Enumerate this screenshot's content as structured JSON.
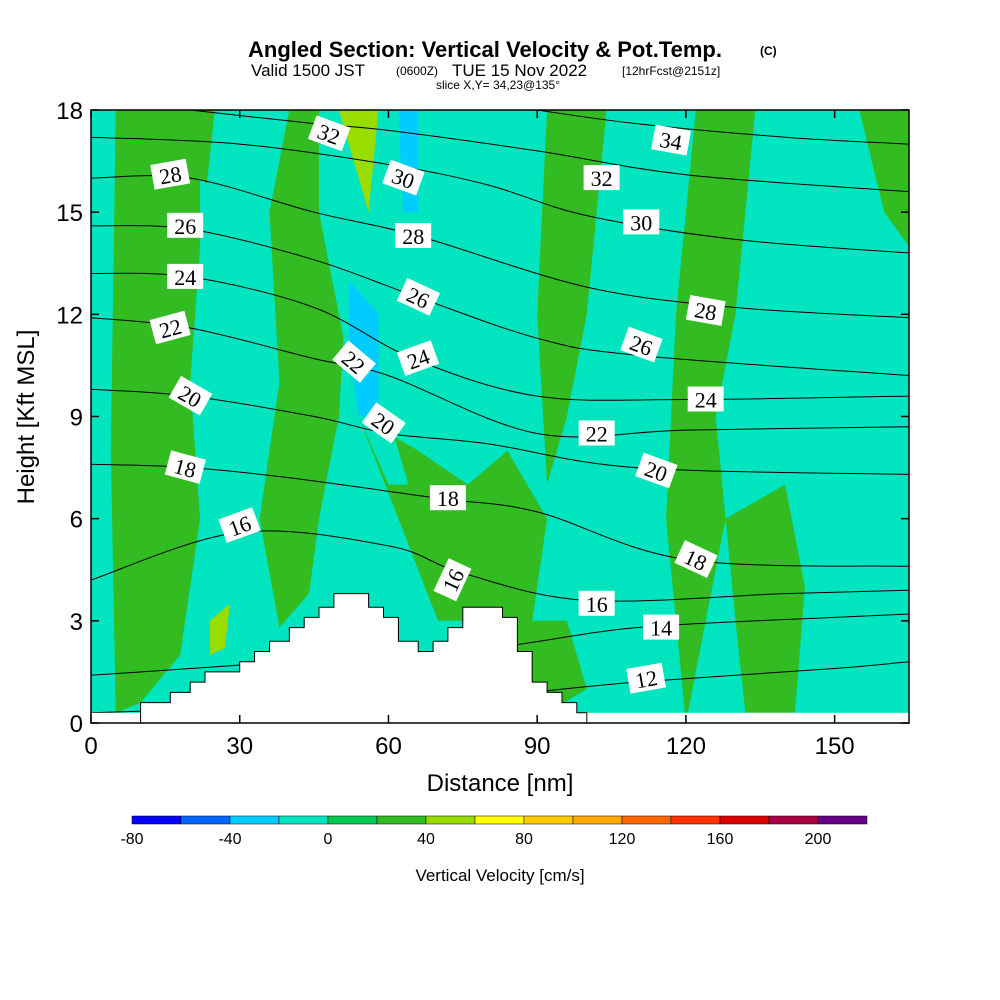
{
  "colors": {
    "bg_field": "#00e5c0",
    "stops": [
      "#0000ff",
      "#0066ff",
      "#00ccff",
      "#00e5c0",
      "#00c853",
      "#33bb22",
      "#99dd00",
      "#ffff00",
      "#ffcc00",
      "#ffaa00",
      "#ff6600",
      "#ff3300",
      "#dd0000",
      "#aa0044",
      "#660088"
    ]
  },
  "chart_data": {
    "type": "heatmap",
    "title": "Angled Section: Vertical Velocity & Pot.Temp.",
    "title_mark": "(C)",
    "subtitle_parts": [
      "Valid 1500 JST",
      "(0600Z)",
      "TUE 15 Nov 2022",
      "[12hrFcst@2151z]"
    ],
    "slice_text": "slice X,Y= 34,23@135°",
    "xlabel": "Distance [nm]",
    "ylabel": "Height [Kft MSL]",
    "xlim": [
      0,
      165
    ],
    "ylim": [
      0,
      18
    ],
    "xticks": [
      0,
      30,
      60,
      90,
      120,
      150
    ],
    "yticks": [
      0,
      3,
      6,
      9,
      12,
      15,
      18
    ],
    "colorbar": {
      "label": "Vertical Velocity [cm/s]",
      "min": -80,
      "max": 220,
      "step": 20,
      "tick_labels": [
        -80,
        -40,
        0,
        40,
        80,
        120,
        160,
        200
      ]
    },
    "terrain": [
      [
        10,
        0.3
      ],
      [
        10,
        0.6
      ],
      [
        16,
        0.6
      ],
      [
        16,
        0.9
      ],
      [
        20,
        0.9
      ],
      [
        20,
        1.2
      ],
      [
        23,
        1.2
      ],
      [
        23,
        1.5
      ],
      [
        26,
        1.5
      ],
      [
        26,
        1.5
      ],
      [
        30,
        1.5
      ],
      [
        30,
        1.8
      ],
      [
        33,
        1.8
      ],
      [
        33,
        2.1
      ],
      [
        36,
        2.1
      ],
      [
        36,
        2.4
      ],
      [
        40,
        2.4
      ],
      [
        40,
        2.8
      ],
      [
        43,
        2.8
      ],
      [
        43,
        3.1
      ],
      [
        46,
        3.1
      ],
      [
        46,
        3.4
      ],
      [
        49,
        3.4
      ],
      [
        49,
        3.8
      ],
      [
        56,
        3.8
      ],
      [
        56,
        3.4
      ],
      [
        59,
        3.4
      ],
      [
        59,
        3.1
      ],
      [
        62,
        3.1
      ],
      [
        62,
        2.4
      ],
      [
        66,
        2.4
      ],
      [
        66,
        2.1
      ],
      [
        69,
        2.1
      ],
      [
        69,
        2.4
      ],
      [
        72,
        2.4
      ],
      [
        72,
        2.8
      ],
      [
        75,
        2.8
      ],
      [
        75,
        3.4
      ],
      [
        78,
        3.4
      ],
      [
        78,
        3.4
      ],
      [
        83,
        3.4
      ],
      [
        83,
        3.1
      ],
      [
        86,
        3.1
      ],
      [
        86,
        2.1
      ],
      [
        89,
        2.1
      ],
      [
        89,
        1.2
      ],
      [
        92,
        1.2
      ],
      [
        92,
        0.9
      ],
      [
        95,
        0.9
      ],
      [
        95,
        0.6
      ],
      [
        98,
        0.6
      ],
      [
        98,
        0.3
      ],
      [
        100,
        0.3
      ],
      [
        100,
        0.0
      ]
    ],
    "velocity_regions": [
      {
        "value": 20,
        "points": [
          [
            5,
            18
          ],
          [
            25,
            18
          ],
          [
            22,
            14
          ],
          [
            20,
            10
          ],
          [
            22,
            6
          ],
          [
            18,
            2
          ],
          [
            10,
            0.6
          ],
          [
            5,
            0.3
          ],
          [
            4,
            8
          ]
        ]
      },
      {
        "value": 20,
        "points": [
          [
            40,
            18
          ],
          [
            48,
            18
          ],
          [
            52,
            14
          ],
          [
            50,
            9
          ],
          [
            46,
            6
          ],
          [
            44,
            3.8
          ],
          [
            38,
            2.8
          ],
          [
            34,
            6
          ],
          [
            38,
            10
          ],
          [
            36,
            15
          ]
        ]
      },
      {
        "value": 20,
        "points": [
          [
            54,
            9
          ],
          [
            62,
            6
          ],
          [
            70,
            3
          ],
          [
            80,
            3
          ],
          [
            88,
            2
          ],
          [
            92,
            6
          ],
          [
            84,
            8
          ],
          [
            76,
            7
          ],
          [
            66,
            8
          ]
        ]
      },
      {
        "value": 20,
        "points": [
          [
            92,
            18
          ],
          [
            104,
            18
          ],
          [
            100,
            12
          ],
          [
            96,
            9
          ],
          [
            92,
            7
          ],
          [
            90,
            12
          ]
        ]
      },
      {
        "value": 20,
        "points": [
          [
            122,
            18
          ],
          [
            134,
            18
          ],
          [
            130,
            12
          ],
          [
            126,
            9
          ],
          [
            128,
            6
          ],
          [
            124,
            3
          ],
          [
            120,
            0
          ],
          [
            116,
            6
          ],
          [
            118,
            12
          ]
        ]
      },
      {
        "value": 20,
        "points": [
          [
            128,
            6
          ],
          [
            140,
            7
          ],
          [
            144,
            4
          ],
          [
            142,
            0.3
          ],
          [
            132,
            0.3
          ],
          [
            130,
            3
          ]
        ]
      },
      {
        "value": 20,
        "points": [
          [
            84,
            3
          ],
          [
            96,
            3
          ],
          [
            100,
            1
          ],
          [
            92,
            0.3
          ],
          [
            84,
            0.3
          ]
        ]
      },
      {
        "value": 20,
        "points": [
          [
            155,
            18
          ],
          [
            165,
            18
          ],
          [
            165,
            14
          ],
          [
            160,
            15
          ]
        ]
      },
      {
        "value": 40,
        "points": [
          [
            50,
            18
          ],
          [
            58,
            18
          ],
          [
            56,
            15
          ],
          [
            54,
            16
          ]
        ]
      },
      {
        "value": 40,
        "points": [
          [
            24,
            3
          ],
          [
            28,
            3.5
          ],
          [
            27,
            2.2
          ],
          [
            24,
            2
          ]
        ]
      },
      {
        "value": -20,
        "points": [
          [
            22,
            16
          ],
          [
            30,
            15
          ],
          [
            30,
            10
          ],
          [
            26,
            8
          ],
          [
            22,
            10
          ]
        ]
      },
      {
        "value": -20,
        "points": [
          [
            46,
            18
          ],
          [
            50,
            18
          ],
          [
            54,
            13
          ],
          [
            60,
            9
          ],
          [
            64,
            7
          ],
          [
            60,
            7
          ],
          [
            54,
            9
          ],
          [
            50,
            12
          ],
          [
            46,
            15
          ]
        ]
      },
      {
        "value": -20,
        "points": [
          [
            62,
            18
          ],
          [
            72,
            18
          ],
          [
            70,
            14
          ],
          [
            68,
            10
          ],
          [
            64,
            9
          ],
          [
            62,
            12
          ]
        ]
      },
      {
        "value": -40,
        "points": [
          [
            52,
            13
          ],
          [
            58,
            12
          ],
          [
            58,
            9
          ],
          [
            54,
            9
          ],
          [
            52,
            11
          ]
        ]
      },
      {
        "value": -40,
        "points": [
          [
            62,
            18
          ],
          [
            66,
            18
          ],
          [
            66,
            15
          ],
          [
            63,
            15
          ]
        ]
      }
    ],
    "theta_lines": [
      {
        "label": "12",
        "points": [
          [
            0,
            0.3
          ],
          [
            40,
            0.5
          ],
          [
            80,
            0.8
          ],
          [
            110,
            1.2
          ],
          [
            150,
            1.6
          ],
          [
            165,
            1.8
          ]
        ],
        "label_at": [
          110,
          1.3
        ]
      },
      {
        "label": "14",
        "points": [
          [
            0,
            1.4
          ],
          [
            40,
            1.8
          ],
          [
            80,
            2.2
          ],
          [
            110,
            2.8
          ],
          [
            150,
            3.1
          ],
          [
            165,
            3.2
          ]
        ],
        "label_at": [
          115,
          2.8
        ]
      },
      {
        "label": "16",
        "points": [
          [
            0,
            4.2
          ],
          [
            30,
            5.6
          ],
          [
            60,
            5.2
          ],
          [
            75,
            4.4
          ],
          [
            100,
            3.6
          ],
          [
            140,
            3.8
          ],
          [
            165,
            3.9
          ]
        ],
        "label_at": [
          100,
          3.5
        ]
      },
      {
        "label": "18",
        "points": [
          [
            0,
            7.6
          ],
          [
            20,
            7.5
          ],
          [
            40,
            7.2
          ],
          [
            70,
            6.6
          ],
          [
            90,
            6.2
          ],
          [
            120,
            4.8
          ],
          [
            165,
            4.6
          ]
        ],
        "label_at": [
          120,
          4.8
        ]
      },
      {
        "label": "20",
        "points": [
          [
            0,
            9.8
          ],
          [
            20,
            9.6
          ],
          [
            45,
            9.0
          ],
          [
            60,
            8.5
          ],
          [
            80,
            8.2
          ],
          [
            110,
            7.5
          ],
          [
            165,
            7.3
          ]
        ],
        "label_at": [
          110,
          7.5
        ]
      },
      {
        "label": "22",
        "points": [
          [
            0,
            11.9
          ],
          [
            20,
            11.6
          ],
          [
            45,
            10.7
          ],
          [
            60,
            10.2
          ],
          [
            90,
            8.5
          ],
          [
            120,
            8.6
          ],
          [
            165,
            8.7
          ]
        ],
        "label_at": [
          96,
          8.5
        ]
      },
      {
        "label": "24",
        "points": [
          [
            0,
            13.2
          ],
          [
            20,
            13.1
          ],
          [
            45,
            12.2
          ],
          [
            65,
            10.7
          ],
          [
            90,
            9.6
          ],
          [
            120,
            9.5
          ],
          [
            165,
            9.6
          ]
        ],
        "label_at": [
          120,
          9.5
        ]
      },
      {
        "label": "26",
        "points": [
          [
            0,
            14.6
          ],
          [
            20,
            14.5
          ],
          [
            45,
            13.6
          ],
          [
            66,
            12.5
          ],
          [
            90,
            11.3
          ],
          [
            110,
            10.8
          ],
          [
            165,
            10.2
          ]
        ],
        "label_at": [
          110,
          10.8
        ]
      },
      {
        "label": "28",
        "points": [
          [
            0,
            16.0
          ],
          [
            20,
            16.0
          ],
          [
            45,
            15.0
          ],
          [
            66,
            14.3
          ],
          [
            100,
            12.8
          ],
          [
            130,
            12.2
          ],
          [
            165,
            11.9
          ]
        ],
        "label_at": [
          130,
          12.2
        ]
      },
      {
        "label": "30",
        "points": [
          [
            0,
            17.2
          ],
          [
            30,
            17.0
          ],
          [
            60,
            16.4
          ],
          [
            80,
            15.8
          ],
          [
            100,
            14.9
          ],
          [
            130,
            14.2
          ],
          [
            165,
            13.8
          ]
        ],
        "label_at": [
          100,
          14.9
        ]
      },
      {
        "label": "32",
        "points": [
          [
            20,
            18
          ],
          [
            45,
            17.6
          ],
          [
            60,
            17.4
          ],
          [
            90,
            16.8
          ],
          [
            120,
            16.1
          ],
          [
            165,
            15.6
          ]
        ],
        "label_at": [
          96,
          16
        ]
      },
      {
        "label": "34",
        "points": [
          [
            90,
            18
          ],
          [
            110,
            17.6
          ],
          [
            140,
            17.2
          ],
          [
            165,
            17.0
          ]
        ],
        "label_at": [
          112,
          17
        ]
      }
    ],
    "contour_labels": [
      {
        "text": "32",
        "x": 48,
        "y": 17.3,
        "angle": 20
      },
      {
        "text": "30",
        "x": 63,
        "y": 16.0,
        "angle": 20
      },
      {
        "text": "28",
        "x": 16,
        "y": 16.1,
        "angle": -10
      },
      {
        "text": "26",
        "x": 19,
        "y": 14.6,
        "angle": 0
      },
      {
        "text": "28",
        "x": 65,
        "y": 14.3,
        "angle": 0
      },
      {
        "text": "24",
        "x": 19,
        "y": 13.1,
        "angle": 0
      },
      {
        "text": "26",
        "x": 66,
        "y": 12.5,
        "angle": 25
      },
      {
        "text": "22",
        "x": 16,
        "y": 11.6,
        "angle": -15
      },
      {
        "text": "22",
        "x": 53,
        "y": 10.6,
        "angle": 40
      },
      {
        "text": "24",
        "x": 66,
        "y": 10.7,
        "angle": -20
      },
      {
        "text": "20",
        "x": 20,
        "y": 9.6,
        "angle": 30
      },
      {
        "text": "20",
        "x": 59,
        "y": 8.8,
        "angle": 35
      },
      {
        "text": "18",
        "x": 19,
        "y": 7.5,
        "angle": 15
      },
      {
        "text": "18",
        "x": 72,
        "y": 6.6,
        "angle": 0
      },
      {
        "text": "16",
        "x": 30,
        "y": 5.8,
        "angle": -20
      },
      {
        "text": "16",
        "x": 73,
        "y": 4.2,
        "angle": -65
      },
      {
        "text": "34",
        "x": 117,
        "y": 17.1,
        "angle": 10
      },
      {
        "text": "32",
        "x": 103,
        "y": 16.0,
        "angle": 0
      },
      {
        "text": "30",
        "x": 111,
        "y": 14.7,
        "angle": 0
      },
      {
        "text": "28",
        "x": 124,
        "y": 12.1,
        "angle": 10
      },
      {
        "text": "26",
        "x": 111,
        "y": 11.1,
        "angle": 20
      },
      {
        "text": "24",
        "x": 124,
        "y": 9.5,
        "angle": 0
      },
      {
        "text": "22",
        "x": 102,
        "y": 8.5,
        "angle": 0
      },
      {
        "text": "20",
        "x": 114,
        "y": 7.4,
        "angle": 20
      },
      {
        "text": "18",
        "x": 122,
        "y": 4.8,
        "angle": 25
      },
      {
        "text": "16",
        "x": 102,
        "y": 3.5,
        "angle": 0
      },
      {
        "text": "14",
        "x": 115,
        "y": 2.8,
        "angle": 0
      },
      {
        "text": "12",
        "x": 112,
        "y": 1.3,
        "angle": -10
      }
    ]
  }
}
